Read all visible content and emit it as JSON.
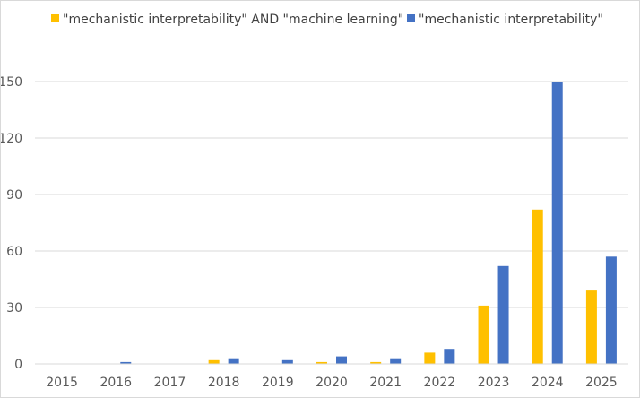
{
  "chart_data": {
    "type": "bar",
    "categories": [
      "2015",
      "2016",
      "2017",
      "2018",
      "2019",
      "2020",
      "2021",
      "2022",
      "2023",
      "2024",
      "2025"
    ],
    "series": [
      {
        "name": "\"mechanistic interpretability\" AND \"machine learning\"",
        "color": "#FFC000",
        "values": [
          0,
          0,
          0,
          2,
          0,
          1,
          1,
          6,
          31,
          82,
          39
        ]
      },
      {
        "name": "\"mechanistic interpretability\"",
        "color": "#4472C4",
        "values": [
          0,
          1,
          0,
          3,
          2,
          4,
          3,
          8,
          52,
          150,
          57
        ]
      }
    ],
    "y_ticks": [
      "0",
      "30",
      "60",
      "90",
      "120",
      "150"
    ],
    "ylim": [
      0,
      150
    ],
    "grid": true,
    "legend_position": "top-left",
    "title": "",
    "xlabel": "",
    "ylabel": ""
  }
}
